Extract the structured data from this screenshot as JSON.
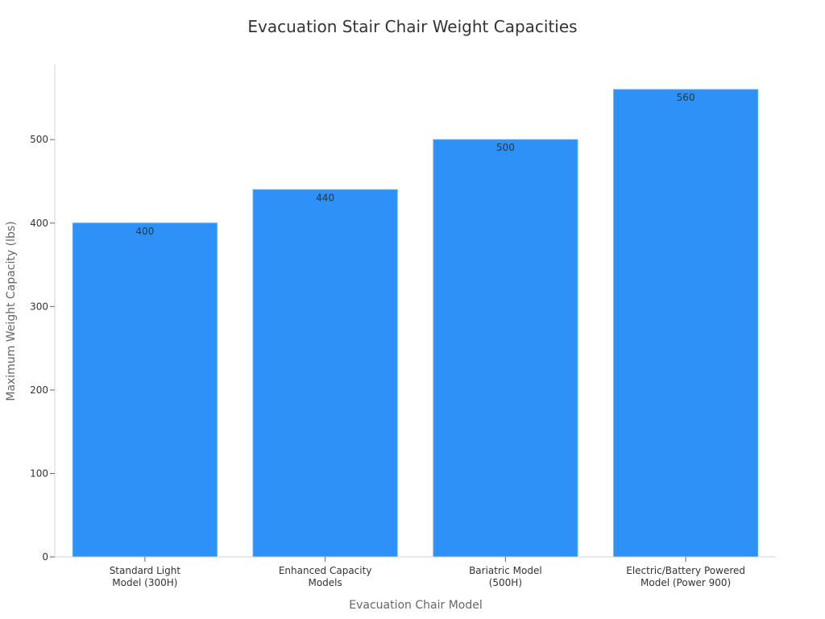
{
  "chart_data": {
    "type": "bar",
    "title": "Evacuation Stair Chair Weight Capacities",
    "xlabel": "Evacuation Chair Model",
    "ylabel": "Maximum Weight Capacity (lbs)",
    "categories": [
      [
        "Standard Light",
        "Model (300H)"
      ],
      [
        "Enhanced Capacity",
        "Models"
      ],
      [
        "Bariatric Model",
        "(500H)"
      ],
      [
        "Electric/Battery Powered",
        "Model (Power 900)"
      ]
    ],
    "values": [
      400,
      440,
      500,
      560
    ],
    "ylim": [
      0,
      590
    ],
    "yticks": [
      0,
      100,
      200,
      300,
      400,
      500
    ],
    "grid": false,
    "bar_color": "#2e91f8",
    "bar_edge_color": "#5aa9f9"
  }
}
